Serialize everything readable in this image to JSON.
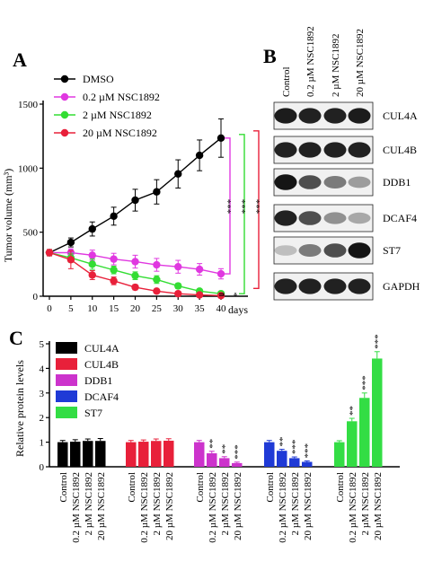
{
  "panels": {
    "A": {
      "letter": "A",
      "xlabel": "days",
      "ylabel": "Tumor volume (mm³)",
      "x_ticks": [
        "0",
        "5",
        "10",
        "15",
        "20",
        "25",
        "30",
        "35",
        "40"
      ],
      "y_ticks": [
        "0",
        "500",
        "1000",
        "1500"
      ],
      "legend": [
        "DMSO",
        "0.2 µM NSC1892",
        "2 µM NSC1892",
        "20 µM NSC1892"
      ],
      "sig_brackets": [
        "***",
        "***",
        "***",
        "*"
      ]
    },
    "B": {
      "letter": "B",
      "lane_labels": [
        "Control",
        "0.2 µM NSC1892",
        "2 µM NSC1892",
        "20 µM NSC1892"
      ],
      "blot_labels": [
        "CUL4A",
        "CUL4B",
        "DDB1",
        "DCAF4",
        "ST7",
        "GAPDH"
      ],
      "blot_intensity": [
        [
          0.92,
          0.9,
          0.9,
          0.92
        ],
        [
          0.9,
          0.9,
          0.9,
          0.9
        ],
        [
          0.95,
          0.7,
          0.5,
          0.35
        ],
        [
          0.9,
          0.7,
          0.4,
          0.3
        ],
        [
          0.2,
          0.5,
          0.7,
          0.95
        ],
        [
          0.9,
          0.9,
          0.9,
          0.9
        ]
      ]
    },
    "C": {
      "letter": "C",
      "ylabel": "Relative protein levels",
      "y_ticks": [
        "0",
        "1",
        "2",
        "3",
        "4",
        "5"
      ],
      "x_group_labels": [
        "Control",
        "0.2 µM NSC1892",
        "2 µM NSC1892",
        "20 µM NSC1892"
      ],
      "legend": [
        "CUL4A",
        "CUL4B",
        "DDB1",
        "DCAF4",
        "ST7"
      ]
    }
  },
  "chart_data": [
    {
      "type": "line",
      "title": "",
      "xlabel": "days",
      "ylabel": "Tumor volume (mm³)",
      "xlim": [
        0,
        40
      ],
      "ylim": [
        0,
        1500
      ],
      "x": [
        0,
        5,
        10,
        15,
        20,
        25,
        30,
        35,
        40
      ],
      "series": [
        {
          "name": "DMSO",
          "color": "#000000",
          "values": [
            340,
            420,
            525,
            625,
            750,
            815,
            955,
            1100,
            1235
          ],
          "errors": [
            20,
            35,
            55,
            70,
            85,
            95,
            110,
            120,
            150
          ]
        },
        {
          "name": "0.2 µM NSC1892",
          "color": "#e038e0",
          "values": [
            340,
            340,
            320,
            290,
            270,
            245,
            230,
            210,
            175
          ],
          "errors": [
            25,
            30,
            40,
            45,
            50,
            50,
            50,
            45,
            40
          ]
        },
        {
          "name": "2 µM NSC1892",
          "color": "#33dd33",
          "values": [
            340,
            300,
            250,
            205,
            160,
            130,
            80,
            40,
            20
          ],
          "errors": [
            25,
            35,
            40,
            30,
            30,
            30,
            20,
            15,
            10
          ]
        },
        {
          "name": "20 µM NSC1892",
          "color": "#e8203a",
          "values": [
            340,
            285,
            165,
            120,
            70,
            40,
            20,
            10,
            5
          ],
          "errors": [
            25,
            70,
            35,
            30,
            20,
            15,
            10,
            5,
            5
          ]
        }
      ],
      "legend": "top-left",
      "annotations": [
        "***",
        "***",
        "***",
        "*"
      ]
    },
    {
      "type": "bar",
      "title": "",
      "ylabel": "Relative protein levels",
      "ylim": [
        0,
        5
      ],
      "categories": [
        "Control",
        "0.2 µM NSC1892",
        "2 µM NSC1892",
        "20 µM NSC1892"
      ],
      "series": [
        {
          "name": "CUL4A",
          "color": "#000000",
          "values": [
            1.0,
            1.02,
            1.05,
            1.05
          ],
          "errors": [
            0.07,
            0.08,
            0.08,
            0.1
          ],
          "stars": [
            "",
            "",
            "",
            ""
          ]
        },
        {
          "name": "CUL4B",
          "color": "#e8203a",
          "values": [
            1.0,
            1.02,
            1.05,
            1.06
          ],
          "errors": [
            0.07,
            0.07,
            0.08,
            0.08
          ],
          "stars": [
            "",
            "",
            "",
            ""
          ]
        },
        {
          "name": "DDB1",
          "color": "#cc33cc",
          "values": [
            1.0,
            0.55,
            0.35,
            0.15
          ],
          "errors": [
            0.07,
            0.08,
            0.06,
            0.04
          ],
          "stars": [
            "",
            "**",
            "**",
            "***"
          ]
        },
        {
          "name": "DCAF4",
          "color": "#1f3ad6",
          "values": [
            1.0,
            0.65,
            0.35,
            0.2
          ],
          "errors": [
            0.07,
            0.06,
            0.05,
            0.04
          ],
          "stars": [
            "",
            "**",
            "***",
            "***"
          ]
        },
        {
          "name": "ST7",
          "color": "#33dd44",
          "values": [
            1.0,
            1.85,
            2.8,
            4.4
          ],
          "errors": [
            0.06,
            0.12,
            0.2,
            0.28
          ],
          "stars": [
            "",
            "**",
            "***",
            "***"
          ]
        }
      ],
      "legend": "top-left"
    }
  ]
}
